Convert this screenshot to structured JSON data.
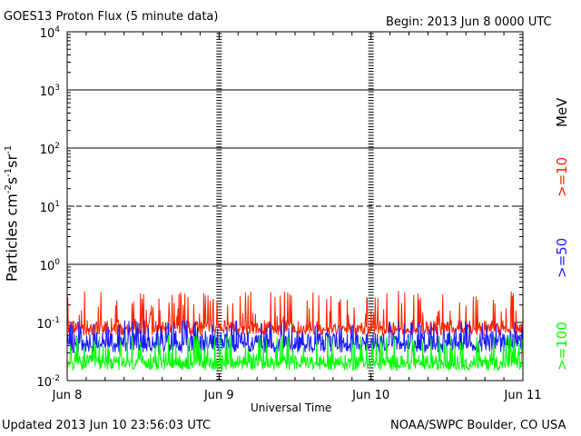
{
  "header": {
    "title": "GOES13 Proton Flux (5 minute data)",
    "begin": "Begin: 2013 Jun 8 0000 UTC"
  },
  "footer": {
    "updated": "Updated 2013 Jun 10 23:56:03 UTC",
    "credit": "NOAA/SWPC Boulder, CO USA"
  },
  "chart_data": {
    "type": "line",
    "title": "GOES13 Proton Flux (5 minute data)",
    "xlabel": "Universal Time",
    "ylabel_base": "Particles cm",
    "ylabel_sup1": "-2",
    "ylabel_mid1": "s",
    "ylabel_sup2": "-1",
    "ylabel_mid2": "sr",
    "ylabel_sup3": "-1",
    "y_scale": "log",
    "ylim": [
      0.01,
      10000
    ],
    "xlim_days": [
      "2013-06-08",
      "2013-06-11"
    ],
    "x_tick_labels": [
      "Jun 8",
      "Jun 9",
      "Jun 10",
      "Jun 11"
    ],
    "y_ticks": [
      {
        "base": "10",
        "exp": "-2"
      },
      {
        "base": "10",
        "exp": "-1"
      },
      {
        "base": "10",
        "exp": "0"
      },
      {
        "base": "10",
        "exp": "1"
      },
      {
        "base": "10",
        "exp": "2"
      },
      {
        "base": "10",
        "exp": "3"
      },
      {
        "base": "10",
        "exp": "4"
      }
    ],
    "threshold_lines": [
      {
        "value": 1000,
        "style": "solid"
      },
      {
        "value": 100,
        "style": "solid"
      },
      {
        "value": 10,
        "style": "dashed"
      },
      {
        "value": 1,
        "style": "solid"
      }
    ],
    "legend_unit": "MeV",
    "series": [
      {
        "name": ">=10",
        "color": "#ff2200",
        "baseline": 0.1,
        "spike_max": 0.35,
        "low": 0.06
      },
      {
        "name": ">=50",
        "color": "#1a1aff",
        "baseline": 0.06,
        "spike_max": 0.11,
        "low": 0.03
      },
      {
        "name": ">=100",
        "color": "#00ff00",
        "baseline": 0.025,
        "spike_max": 0.06,
        "low": 0.015
      }
    ]
  }
}
